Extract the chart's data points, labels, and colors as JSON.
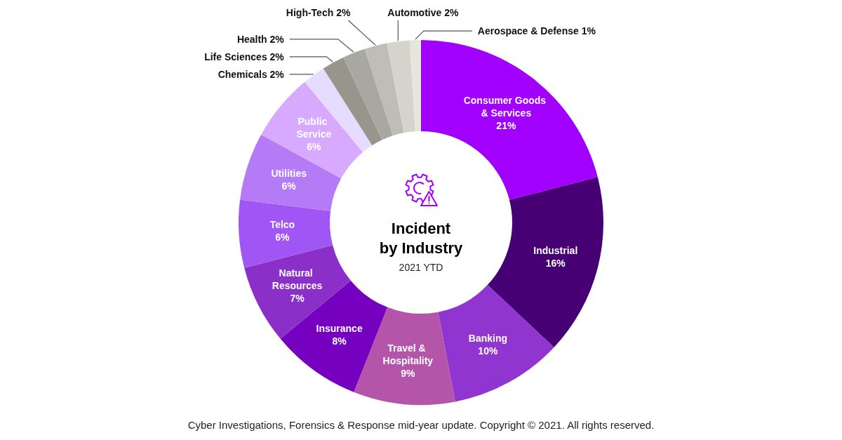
{
  "chart_data": {
    "type": "donut",
    "title": "Incident by Industry",
    "subtitle": "2021 YTD",
    "categories": [
      "Consumer Goods & Services",
      "Industrial",
      "Banking",
      "Travel & Hospitality",
      "Insurance",
      "Natural Resources",
      "Telco",
      "Utilities",
      "Public Service",
      "Chemicals",
      "Life Sciences",
      "Health",
      "High-Tech",
      "Automotive",
      "Aerospace & Defense"
    ],
    "values": [
      21,
      16,
      10,
      9,
      8,
      7,
      6,
      6,
      6,
      2,
      2,
      2,
      2,
      2,
      1
    ],
    "value_labels": [
      "21%",
      "16%",
      "10%",
      "9%",
      "8%",
      "7%",
      "6%",
      "6%",
      "6%",
      "2%",
      "2%",
      "2%",
      "2%",
      "2%",
      "1%"
    ],
    "colors": [
      "#a100ff",
      "#460073",
      "#9135d0",
      "#b455aa",
      "#7500c0",
      "#8b2fc9",
      "#a055f5",
      "#b57bf7",
      "#d8aaff",
      "#e6dcff",
      "#96968c",
      "#a8a8a0",
      "#bebeb6",
      "#d4d4cc",
      "#e6e6dc"
    ],
    "annotations": [
      "Cyber Investigations, Forensics & Response mid-year update. Copyright © 2021. All rights reserved."
    ]
  }
}
